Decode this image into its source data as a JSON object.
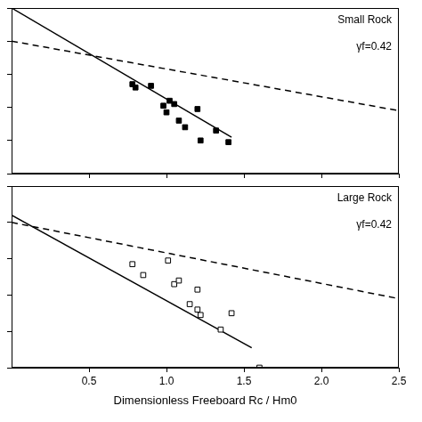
{
  "chart_data": [
    {
      "type": "scatter",
      "annotations": [
        "Small Rock",
        "γf=0.42"
      ],
      "xlim": [
        0,
        2.5
      ],
      "xticks": [
        0.5,
        {
          "value": 1,
          "label": "1.0"
        },
        1.5,
        {
          "value": 2,
          "label": "2.0"
        },
        2.5
      ],
      "ylim": [
        0,
        5
      ],
      "yticks": [
        0,
        1,
        2,
        3,
        4,
        5
      ],
      "tick_labels": false,
      "grid": false,
      "series": [
        {
          "type": "scatter",
          "marker": "square",
          "color": "#000000",
          "x": [
            0.78,
            0.8,
            0.9,
            0.98,
            1.0,
            1.02,
            1.05,
            1.08,
            1.12,
            1.2,
            1.22,
            1.32,
            1.4
          ],
          "values": [
            2.7,
            2.6,
            2.65,
            2.05,
            1.85,
            2.2,
            2.1,
            1.6,
            1.4,
            1.95,
            1.0,
            1.3,
            0.95
          ]
        },
        {
          "type": "line",
          "line_style": "solid",
          "color": "#000000",
          "x": [
            0,
            1.42
          ],
          "values": [
            5,
            1.1
          ]
        },
        {
          "type": "line",
          "line_style": "dashed",
          "color": "#000000",
          "x": [
            0,
            2.5
          ],
          "values": [
            4.0,
            1.9
          ]
        }
      ]
    },
    {
      "type": "scatter",
      "x_label": "Dimensionless Freeboard Rc / Hm0",
      "annotations": [
        "Large Rock",
        "γf=0.42"
      ],
      "xlim": [
        0,
        2.5
      ],
      "xticks": [
        0.5,
        {
          "value": 1,
          "label": "1.0"
        },
        1.5,
        {
          "value": 2,
          "label": "2.0"
        },
        2.5
      ],
      "ylim": [
        0,
        5
      ],
      "yticks": [
        0,
        1,
        2,
        3,
        4,
        5
      ],
      "tick_labels": "x",
      "grid": false,
      "series": [
        {
          "type": "scatter",
          "marker": "open_square",
          "color": "#000000",
          "x": [
            0.78,
            0.85,
            1.01,
            1.05,
            1.08,
            1.15,
            1.2,
            1.2,
            1.22,
            1.35,
            1.42,
            1.6
          ],
          "values": [
            2.85,
            2.55,
            2.95,
            2.3,
            2.4,
            1.75,
            2.15,
            1.6,
            1.45,
            1.05,
            1.5,
            0.0
          ]
        },
        {
          "type": "line",
          "line_style": "solid",
          "color": "#000000",
          "x": [
            0,
            1.55
          ],
          "values": [
            4.2,
            0.55
          ]
        },
        {
          "type": "line",
          "line_style": "dashed",
          "color": "#000000",
          "x": [
            0,
            2.5
          ],
          "values": [
            4.0,
            1.9
          ]
        }
      ]
    }
  ]
}
